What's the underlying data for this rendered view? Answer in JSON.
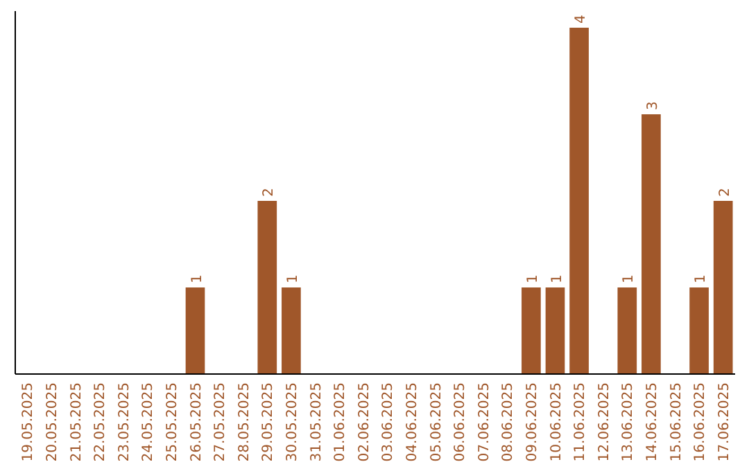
{
  "chart_data": {
    "type": "bar",
    "categories": [
      "19.05.2025",
      "20.05.2025",
      "21.05.2025",
      "22.05.2025",
      "23.05.2025",
      "24.05.2025",
      "25.05.2025",
      "26.05.2025",
      "27.05.2025",
      "28.05.2025",
      "29.05.2025",
      "30.05.2025",
      "31.05.2025",
      "01.06.2025",
      "02.06.2025",
      "03.06.2025",
      "04.06.2025",
      "05.06.2025",
      "06.06.2025",
      "07.06.2025",
      "08.06.2025",
      "09.06.2025",
      "10.06.2025",
      "11.06.2025",
      "12.06.2025",
      "13.06.2025",
      "14.06.2025",
      "15.06.2025",
      "16.06.2025",
      "17.06.2025"
    ],
    "values": [
      0,
      0,
      0,
      0,
      0,
      0,
      0,
      1,
      0,
      0,
      2,
      1,
      0,
      0,
      0,
      0,
      0,
      0,
      0,
      0,
      0,
      1,
      1,
      4,
      0,
      1,
      3,
      0,
      1,
      2
    ],
    "value_labels": [
      null,
      null,
      null,
      null,
      null,
      null,
      null,
      "1",
      null,
      null,
      "2",
      "1",
      null,
      null,
      null,
      null,
      null,
      null,
      null,
      null,
      null,
      "1",
      "1",
      "4",
      null,
      "1",
      "3",
      null,
      "1",
      "2"
    ],
    "color": "#a0572a",
    "tick_labels": "x"
  }
}
